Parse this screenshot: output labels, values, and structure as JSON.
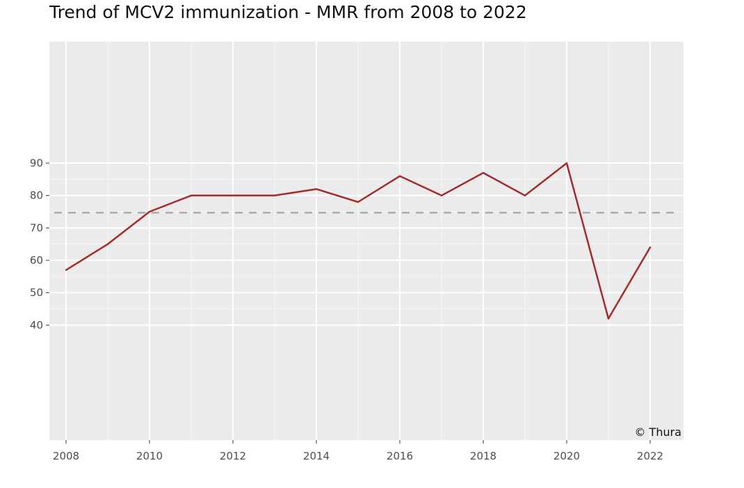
{
  "chart_data": {
    "type": "line",
    "title": "Trend of MCV2 immunization - MMR from 2008 to 2022",
    "xlabel": "",
    "ylabel": "",
    "x": [
      2008,
      2009,
      2010,
      2011,
      2012,
      2013,
      2014,
      2015,
      2016,
      2017,
      2018,
      2019,
      2020,
      2021,
      2022
    ],
    "series": [
      {
        "values": [
          57,
          65,
          75,
          80,
          80,
          80,
          82,
          78,
          86,
          80,
          87,
          80,
          90,
          42,
          64
        ],
        "color": "#a52a2a"
      }
    ],
    "reference_line": {
      "value": 74.7,
      "style": "dashed",
      "color": "#aaaaaa"
    },
    "x_ticks": [
      2008,
      2010,
      2012,
      2014,
      2016,
      2018,
      2020,
      2022
    ],
    "y_ticks": [
      40,
      50,
      60,
      70,
      80,
      90
    ],
    "xlim": [
      2007.6,
      2022.8
    ],
    "ylim": [
      4.5,
      127.5
    ],
    "grid": true,
    "panel_background": "#ebebeb",
    "caption": "© Thura"
  }
}
